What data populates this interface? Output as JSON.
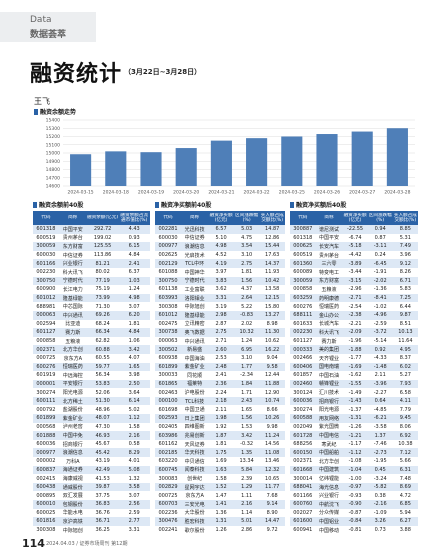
{
  "header": {
    "section_en": "Data",
    "section_cn": "数据荟萃"
  },
  "title": "融资统计",
  "date_range": "（3月22日~3月28日）",
  "author": "王飞",
  "chart_data": {
    "type": "bar",
    "title": "融资余额走势",
    "color": "#4f7fb8",
    "grid": true,
    "categories": [
      "2024-03-15",
      "2024-03-18",
      "2024-03-19",
      "2024-03-20",
      "2024-03-21",
      "2024-03-22",
      "2024-03-25",
      "2024-03-26",
      "2024-03-27",
      "2024-03-28"
    ],
    "values": [
      14985,
      15020,
      15010,
      15060,
      15150,
      15180,
      15200,
      15230,
      15260,
      15300
    ],
    "ylim": [
      14600,
      15400
    ],
    "yticks": [
      14600,
      14700,
      14800,
      14900,
      15000,
      15100,
      15200,
      15300,
      15400
    ]
  },
  "tables": [
    {
      "title": "融资余额前40股",
      "columns": [
        "代码",
        "简称",
        "融资余额(亿元)",
        "融资余额占流通市值比(%)"
      ],
      "rows": [
        [
          "601318",
          "中国平安",
          "292.72",
          "4.43"
        ],
        [
          "600519",
          "贵州茅台",
          "199.02",
          "0.93"
        ],
        [
          "300059",
          "东方财富",
          "125.55",
          "6.15"
        ],
        [
          "600030",
          "中信证券",
          "113.86",
          "4.84"
        ],
        [
          "601166",
          "兴业银行",
          "81.21",
          "2.41"
        ],
        [
          "002230",
          "科大讯飞",
          "80.02",
          "6.37"
        ],
        [
          "300750",
          "宁德时代",
          "77.19",
          "1.03"
        ],
        [
          "600900",
          "长江电力",
          "75.19",
          "1.24"
        ],
        [
          "601012",
          "隆基绿能",
          "73.99",
          "4.98"
        ],
        [
          "688981",
          "中芯国际",
          "71.30",
          "3.07"
        ],
        [
          "000063",
          "中兴通讯",
          "69.26",
          "6.20"
        ],
        [
          "002594",
          "比亚迪",
          "68.24",
          "1.81"
        ],
        [
          "601127",
          "赛力斯",
          "66.34",
          "4.84"
        ],
        [
          "000858",
          "五粮液",
          "62.82",
          "1.06"
        ],
        [
          "002371",
          "北方华创",
          "60.88",
          "3.42"
        ],
        [
          "000725",
          "京东方A",
          "60.55",
          "4.07"
        ],
        [
          "600276",
          "恒瑞医药",
          "59.77",
          "1.65"
        ],
        [
          "601919",
          "中远海控",
          "56.34",
          "3.98"
        ],
        [
          "000001",
          "平安银行",
          "53.83",
          "2.50"
        ],
        [
          "300274",
          "阳光电源",
          "52.06",
          "3.64"
        ],
        [
          "600111",
          "北方稀土",
          "51.30",
          "6.14"
        ],
        [
          "000792",
          "盐湖股份",
          "48.96",
          "5.02"
        ],
        [
          "601899",
          "紫金矿业",
          "48.07",
          "1.12"
        ],
        [
          "000568",
          "泸州老窖",
          "47.30",
          "1.58"
        ],
        [
          "601888",
          "中国中免",
          "46.93",
          "2.16"
        ],
        [
          "600036",
          "招商银行",
          "45.67",
          "0.58"
        ],
        [
          "000977",
          "浪潮信息",
          "45.42",
          "8.29"
        ],
        [
          "000002",
          "万科A",
          "43.19",
          "4.01"
        ],
        [
          "600837",
          "海通证券",
          "42.49",
          "5.08"
        ],
        [
          "002415",
          "海康威视",
          "41.53",
          "1.32"
        ],
        [
          "600438",
          "通威股份",
          "39.87",
          "3.58"
        ],
        [
          "000895",
          "双汇发展",
          "37.75",
          "3.07"
        ],
        [
          "600010",
          "包钢股份",
          "36.83",
          "2.56"
        ],
        [
          "600025",
          "华能水电",
          "36.76",
          "2.59"
        ],
        [
          "601816",
          "京沪高铁",
          "36.71",
          "2.77"
        ],
        [
          "300308",
          "中际旭创",
          "36.25",
          "3.31"
        ]
      ]
    },
    {
      "title": "融资净买额前40股",
      "columns": [
        "代码",
        "简称",
        "融资净买额(亿元)",
        "区间涨跌幅(%)",
        "买入额占成交额比(%)"
      ],
      "rows": [
        [
          "002281",
          "光迅科技",
          "6.57",
          "5.03",
          "14.87"
        ],
        [
          "600030",
          "中信证券",
          "5.10",
          "4.75",
          "12.86"
        ],
        [
          "000977",
          "浪潮信息",
          "4.98",
          "3.54",
          "15.44"
        ],
        [
          "002625",
          "光启技术",
          "4.52",
          "3.10",
          "17.63"
        ],
        [
          "002129",
          "TCL中环",
          "4.19",
          "2.75",
          "14.37"
        ],
        [
          "601088",
          "中国神华",
          "3.97",
          "1.81",
          "11.93"
        ],
        [
          "300750",
          "宁德时代",
          "3.83",
          "1.56",
          "10.42"
        ],
        [
          "601138",
          "工业富联",
          "3.62",
          "4.37",
          "13.58"
        ],
        [
          "603993",
          "洛阳钼业",
          "3.31",
          "2.64",
          "12.15"
        ],
        [
          "300308",
          "中际旭创",
          "3.19",
          "5.22",
          "15.80"
        ],
        [
          "601012",
          "隆基绿能",
          "2.98",
          "-0.83",
          "13.27"
        ],
        [
          "002475",
          "立讯精密",
          "2.87",
          "2.02",
          "8.98"
        ],
        [
          "300738",
          "奥飞数据",
          "2.75",
          "10.32",
          "11.30"
        ],
        [
          "000063",
          "中兴通讯",
          "2.71",
          "1.24",
          "10.62"
        ],
        [
          "300502",
          "新易盛",
          "2.60",
          "6.95",
          "16.22"
        ],
        [
          "600938",
          "中国海油",
          "2.53",
          "3.10",
          "9.04"
        ],
        [
          "601899",
          "紫金矿业",
          "2.48",
          "1.77",
          "9.58"
        ],
        [
          "300033",
          "同花顺",
          "2.41",
          "-2.34",
          "12.44"
        ],
        [
          "601865",
          "福莱特",
          "2.36",
          "1.84",
          "11.88"
        ],
        [
          "002463",
          "沪电股份",
          "2.24",
          "1.71",
          "12.90"
        ],
        [
          "000100",
          "TCL科技",
          "2.18",
          "2.43",
          "10.74"
        ],
        [
          "601698",
          "中国卫通",
          "2.11",
          "1.65",
          "8.66"
        ],
        [
          "002593",
          "日上集团",
          "1.98",
          "1.56",
          "10.26"
        ],
        [
          "002405",
          "四维图新",
          "1.92",
          "1.53",
          "9.98"
        ],
        [
          "603986",
          "兆易创新",
          "1.87",
          "3.42",
          "11.24"
        ],
        [
          "601162",
          "天风证券",
          "1.81",
          "-0.32",
          "14.56"
        ],
        [
          "002185",
          "华天科技",
          "1.75",
          "1.35",
          "11.08"
        ],
        [
          "603220",
          "中贝通信",
          "1.69",
          "13.34",
          "13.46"
        ],
        [
          "600745",
          "闻泰科技",
          "1.63",
          "5.84",
          "12.32"
        ],
        [
          "300083",
          "创世纪",
          "1.58",
          "2.39",
          "10.65"
        ],
        [
          "002829",
          "星网宇达",
          "1.52",
          "1.29",
          "11.77"
        ],
        [
          "000725",
          "京东方A",
          "1.47",
          "1.11",
          "7.68"
        ],
        [
          "600703",
          "三安光电",
          "1.41",
          "2.16",
          "9.14"
        ],
        [
          "002236",
          "大华股份",
          "1.36",
          "1.14",
          "8.90"
        ],
        [
          "300476",
          "胜宏科技",
          "1.31",
          "5.01",
          "14.47"
        ],
        [
          "002241",
          "歌尔股份",
          "1.26",
          "2.86",
          "9.72"
        ]
      ]
    },
    {
      "title": "融资净买额后40股",
      "columns": [
        "代码",
        "简称",
        "融资净买额(亿元)",
        "区间涨跌幅(%)",
        "买入额占成交额比(%)"
      ],
      "rows": [
        [
          "300887",
          "谱尼测试",
          "-22.55",
          "0.94",
          "8.85"
        ],
        [
          "601318",
          "中国平安",
          "-6.74",
          "0.87",
          "5.31"
        ],
        [
          "000625",
          "长安汽车",
          "-5.18",
          "-3.11",
          "7.49"
        ],
        [
          "600519",
          "贵州茅台",
          "-4.42",
          "0.24",
          "3.96"
        ],
        [
          "601360",
          "三六零",
          "-3.89",
          "-6.45",
          "9.12"
        ],
        [
          "600089",
          "特变电工",
          "-3.44",
          "-1.91",
          "8.26"
        ],
        [
          "300059",
          "东方财富",
          "-3.15",
          "-2.02",
          "6.71"
        ],
        [
          "000858",
          "五粮液",
          "-2.96",
          "-1.36",
          "5.83"
        ],
        [
          "603259",
          "药明康德",
          "-2.71",
          "-8.41",
          "7.25"
        ],
        [
          "600276",
          "恒瑞医药",
          "-2.54",
          "-1.02",
          "6.44"
        ],
        [
          "688111",
          "金山办公",
          "-2.38",
          "-4.96",
          "9.87"
        ],
        [
          "601633",
          "长城汽车",
          "-2.21",
          "-2.59",
          "8.51"
        ],
        [
          "002230",
          "科大讯飞",
          "-2.09",
          "-3.72",
          "10.13"
        ],
        [
          "601127",
          "赛力斯",
          "-1.96",
          "-5.14",
          "11.64"
        ],
        [
          "000333",
          "美的集团",
          "-1.88",
          "0.92",
          "4.95"
        ],
        [
          "002466",
          "天齐锂业",
          "-1.77",
          "-4.33",
          "8.37"
        ],
        [
          "600406",
          "国电南瑞",
          "-1.69",
          "-1.48",
          "6.02"
        ],
        [
          "601857",
          "中国石油",
          "-1.62",
          "2.11",
          "5.27"
        ],
        [
          "002460",
          "赣锋锂业",
          "-1.55",
          "-3.96",
          "7.93"
        ],
        [
          "300124",
          "汇川技术",
          "-1.49",
          "-2.27",
          "6.58"
        ],
        [
          "600036",
          "招商银行",
          "-1.43",
          "0.64",
          "4.11"
        ],
        [
          "300274",
          "阳光电源",
          "-1.37",
          "-4.85",
          "7.79"
        ],
        [
          "600588",
          "用友网络",
          "-1.31",
          "-6.21",
          "9.45"
        ],
        [
          "002049",
          "紫光国微",
          "-1.26",
          "-3.58",
          "8.06"
        ],
        [
          "601728",
          "中国电信",
          "-1.21",
          "1.37",
          "6.92"
        ],
        [
          "688256",
          "寒武纪",
          "-1.17",
          "-7.46",
          "10.38"
        ],
        [
          "600150",
          "中国船舶",
          "-1.12",
          "-2.73",
          "7.12"
        ],
        [
          "002371",
          "北方华创",
          "-1.08",
          "-1.95",
          "5.66"
        ],
        [
          "601668",
          "中国建筑",
          "-1.04",
          "0.45",
          "6.31"
        ],
        [
          "300014",
          "亿纬锂能",
          "-1.00",
          "-3.24",
          "7.48"
        ],
        [
          "688041",
          "海光信息",
          "-0.97",
          "-5.82",
          "8.69"
        ],
        [
          "601166",
          "兴业银行",
          "-0.93",
          "0.38",
          "4.72"
        ],
        [
          "600760",
          "中航沈飞",
          "-0.90",
          "-2.16",
          "6.85"
        ],
        [
          "002027",
          "分众传媒",
          "-0.87",
          "-1.09",
          "5.94"
        ],
        [
          "601600",
          "中国铝业",
          "-0.84",
          "3.26",
          "6.27"
        ],
        [
          "600941",
          "中国移动",
          "-0.81",
          "0.73",
          "3.88"
        ]
      ]
    }
  ],
  "footer": {
    "page": "114",
    "issue": "2024.04.03 / 证券市场周刊 第12期"
  }
}
